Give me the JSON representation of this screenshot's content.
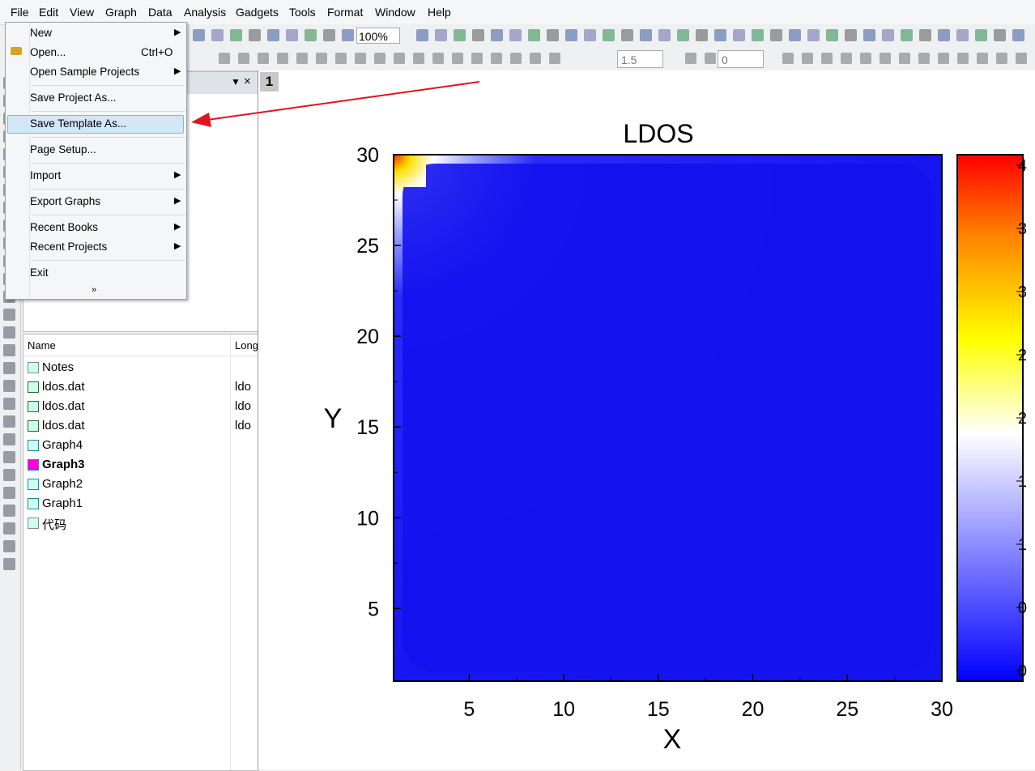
{
  "menu_bar": [
    "File",
    "Edit",
    "View",
    "Graph",
    "Data",
    "Analysis",
    "Gadgets",
    "Tools",
    "Format",
    "Window",
    "Help"
  ],
  "file_menu": [
    {
      "label": "New",
      "submenu": true
    },
    {
      "label": "Open...",
      "shortcut": "Ctrl+O"
    },
    {
      "label": "Open Sample Projects",
      "submenu": true
    },
    {
      "label": "Save Project As..."
    },
    {
      "label": "Save Template As...",
      "highlighted": true
    },
    {
      "label": "Page Setup..."
    },
    {
      "label": "Import",
      "submenu": true
    },
    {
      "label": "Export Graphs",
      "submenu": true
    },
    {
      "label": "Recent Books",
      "submenu": true
    },
    {
      "label": "Recent Projects",
      "submenu": true
    },
    {
      "label": "Exit"
    }
  ],
  "toolbar": {
    "zoom": "100%",
    "line_width": "1.5",
    "pattern": "0"
  },
  "page_tab": "1",
  "explorer": {
    "columns": [
      "Name",
      "Long"
    ],
    "items": [
      {
        "name": "Notes",
        "icon": "notes"
      },
      {
        "name": "ldos.dat",
        "long": "ldo",
        "icon": "book"
      },
      {
        "name": "ldos.dat",
        "long": "ldo",
        "icon": "book"
      },
      {
        "name": "ldos.dat",
        "long": "ldo",
        "icon": "book"
      },
      {
        "name": "Graph4",
        "icon": "graph"
      },
      {
        "name": "Graph3",
        "icon": "graph",
        "active": true
      },
      {
        "name": "Graph2",
        "icon": "graph"
      },
      {
        "name": "Graph1",
        "icon": "graph"
      },
      {
        "name": "代码",
        "icon": "notes"
      }
    ]
  },
  "graph": {
    "title": "LDOS",
    "x_label": "X",
    "y_label": "Y",
    "xlim": [
      1,
      30
    ],
    "ylim": [
      1,
      30
    ],
    "xticks": [
      5,
      10,
      15,
      20,
      25,
      30
    ],
    "yticks": [
      5,
      10,
      15,
      20,
      25,
      30
    ],
    "colorbar_labels": [
      "4",
      "3",
      "3",
      "2",
      "2",
      "1",
      "1",
      "0",
      "0"
    ]
  }
}
